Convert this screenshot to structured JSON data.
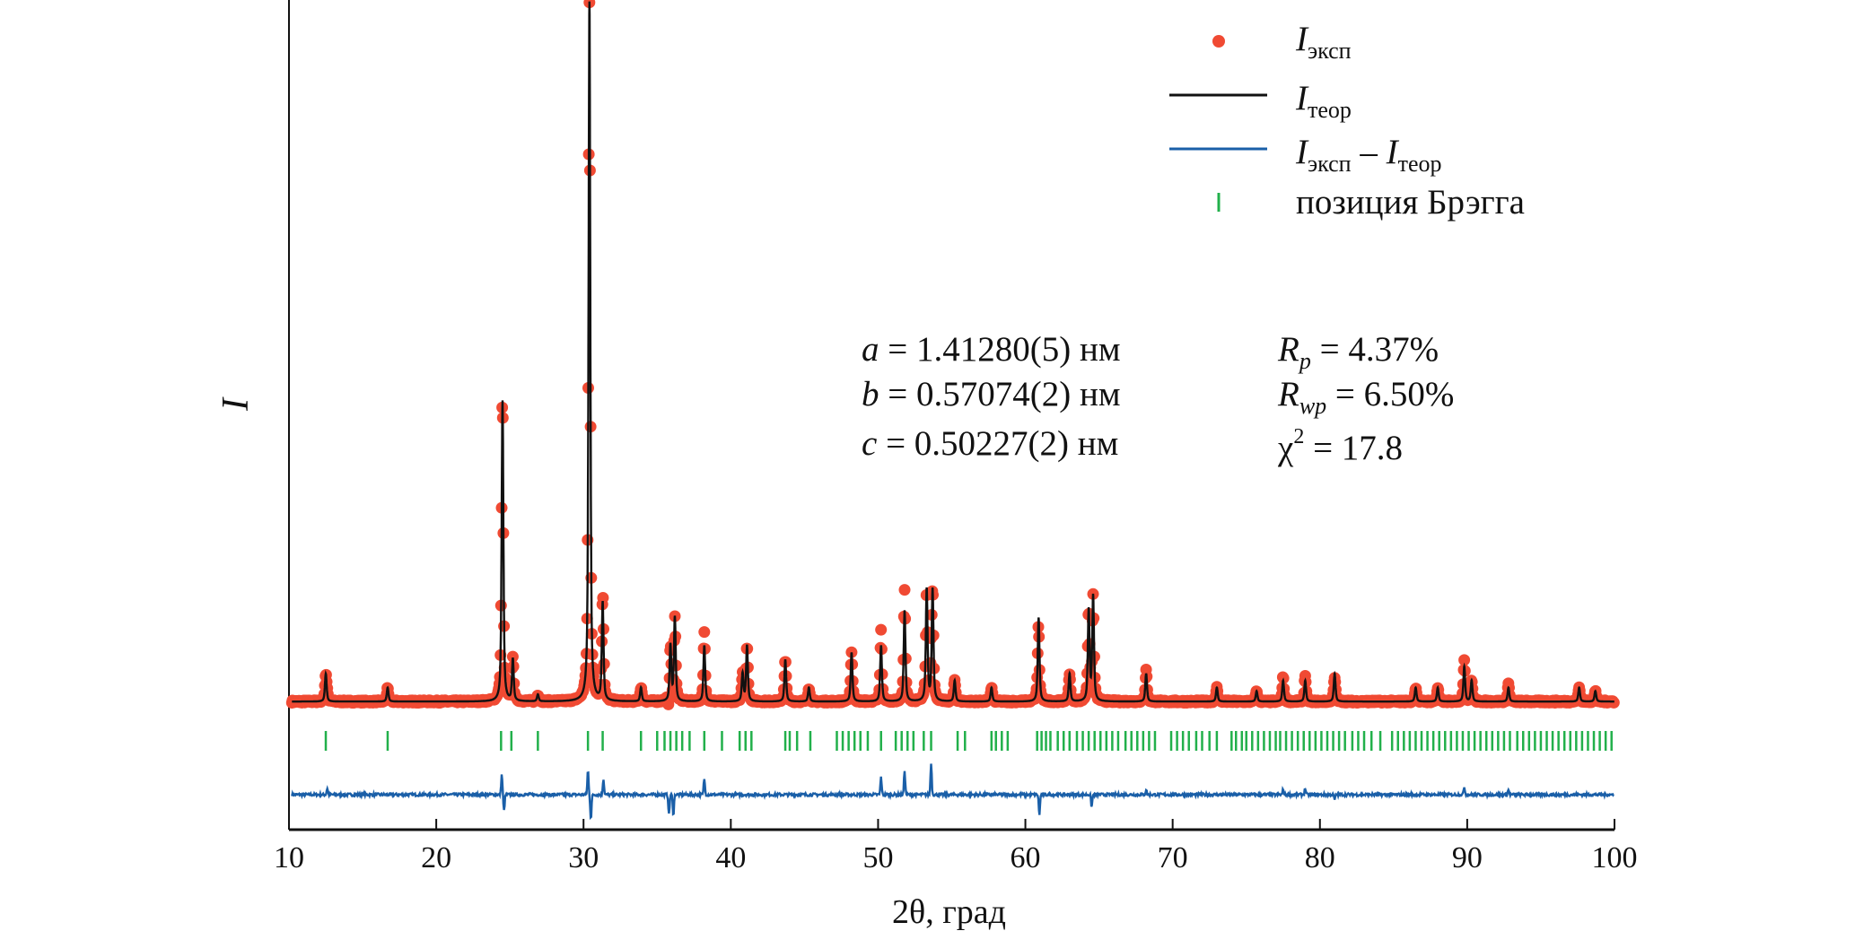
{
  "chart_data": {
    "type": "line",
    "xlabel": "2θ, град",
    "ylabel": "I",
    "xlim": [
      10,
      100
    ],
    "xticks": [
      "10",
      "20",
      "30",
      "40",
      "50",
      "60",
      "70",
      "80",
      "90",
      "100"
    ],
    "yticks": [],
    "grid": false,
    "legend_placement": "top-right",
    "legend": [
      {
        "marker": "dot",
        "symbol": "I",
        "sub": "эксп",
        "color": "#f04a33"
      },
      {
        "marker": "line",
        "symbol": "I",
        "sub": "теор",
        "color": "#111111"
      },
      {
        "marker": "line",
        "symbol": "I",
        "sub": "эксп",
        "minus": " – ",
        "symbol2": "I",
        "sub2": "теор",
        "color": "#1a5fa8"
      },
      {
        "marker": "tick",
        "text": "позиция Брэгга",
        "color": "#22b04b"
      }
    ],
    "annotations": {
      "cell": [
        {
          "var": "a",
          "text": " = 1.41280(5) нм"
        },
        {
          "var": "b",
          "text": " = 0.57074(2) нм"
        },
        {
          "var": "c",
          "text": " = 0.50227(2) нм"
        }
      ],
      "fit": [
        {
          "var": "R",
          "sub": "p",
          "text": " = 4.37%"
        },
        {
          "var": "R",
          "sub": "wp",
          "text": " = 6.50%"
        },
        {
          "var": "χ",
          "sup": "2",
          "text": " = 17.8"
        }
      ]
    },
    "background": 1,
    "calc_peaks": [
      [
        12.5,
        4
      ],
      [
        16.7,
        2
      ],
      [
        24.5,
        43
      ],
      [
        25.2,
        6
      ],
      [
        26.9,
        1
      ],
      [
        30.4,
        100
      ],
      [
        31.3,
        14
      ],
      [
        33.9,
        2
      ],
      [
        35.9,
        8
      ],
      [
        36.2,
        12
      ],
      [
        38.2,
        8
      ],
      [
        40.8,
        4
      ],
      [
        41.1,
        8
      ],
      [
        43.7,
        6
      ],
      [
        45.3,
        2
      ],
      [
        48.2,
        7
      ],
      [
        50.2,
        8
      ],
      [
        51.8,
        13
      ],
      [
        53.3,
        16
      ],
      [
        53.7,
        16
      ],
      [
        55.2,
        3
      ],
      [
        57.7,
        2
      ],
      [
        60.9,
        12
      ],
      [
        63.0,
        4
      ],
      [
        64.3,
        13
      ],
      [
        64.6,
        15
      ],
      [
        68.2,
        4
      ],
      [
        73.0,
        2
      ],
      [
        75.7,
        1.5
      ],
      [
        77.5,
        3
      ],
      [
        79.0,
        3
      ],
      [
        81.0,
        4
      ],
      [
        86.5,
        2
      ],
      [
        88.0,
        2
      ],
      [
        89.8,
        5
      ],
      [
        90.3,
        3
      ],
      [
        92.8,
        2
      ],
      [
        97.6,
        2
      ],
      [
        98.7,
        1.5
      ]
    ],
    "difference_features": [
      [
        12.6,
        0.8
      ],
      [
        24.45,
        2.5
      ],
      [
        24.6,
        -2
      ],
      [
        30.3,
        3
      ],
      [
        30.5,
        -3
      ],
      [
        31.35,
        2
      ],
      [
        35.8,
        -2.5
      ],
      [
        36.1,
        -2.5
      ],
      [
        38.2,
        2
      ],
      [
        50.2,
        2.2
      ],
      [
        51.8,
        3
      ],
      [
        53.6,
        4
      ],
      [
        60.95,
        -2.5
      ],
      [
        64.5,
        -1.5
      ],
      [
        68.2,
        0.6
      ],
      [
        77.5,
        0.6
      ],
      [
        79.0,
        0.8
      ],
      [
        81.0,
        -0.6
      ],
      [
        89.8,
        1
      ],
      [
        92.8,
        0.6
      ]
    ],
    "bragg_positions": [
      12.5,
      16.7,
      24.4,
      25.1,
      26.9,
      30.3,
      31.3,
      33.9,
      35.0,
      35.5,
      35.9,
      36.3,
      36.7,
      37.2,
      38.2,
      39.4,
      40.6,
      41.0,
      41.4,
      43.7,
      44.0,
      44.5,
      45.4,
      47.2,
      47.6,
      48.0,
      48.4,
      48.8,
      49.3,
      50.2,
      51.2,
      51.6,
      52.0,
      52.4,
      53.1,
      53.6,
      55.4,
      55.9,
      57.7,
      58.0,
      58.4,
      58.8,
      60.8,
      61.1,
      61.4,
      61.7,
      62.2,
      62.6,
      63.0,
      63.5,
      63.9,
      64.3,
      64.7,
      65.1,
      65.5,
      65.9,
      66.3,
      66.8,
      67.2,
      67.6,
      68.0,
      68.4,
      68.8,
      69.9,
      70.3,
      70.7,
      71.1,
      71.6,
      72.0,
      72.5,
      73.0,
      74.0,
      74.3,
      74.7,
      75.0,
      75.4,
      75.8,
      76.2,
      76.6,
      77.0,
      77.3,
      77.7,
      78.1,
      78.5,
      78.9,
      79.3,
      79.7,
      80.1,
      80.5,
      80.9,
      81.3,
      81.7,
      82.2,
      82.6,
      83.0,
      83.5,
      84.1,
      84.9,
      85.3,
      85.7,
      86.1,
      86.5,
      86.9,
      87.3,
      87.7,
      88.1,
      88.5,
      88.9,
      89.3,
      89.7,
      90.1,
      90.5,
      90.9,
      91.3,
      91.7,
      92.1,
      92.5,
      92.9,
      93.4,
      93.8,
      94.2,
      94.6,
      95.0,
      95.4,
      95.8,
      96.2,
      96.6,
      97.0,
      97.4,
      97.8,
      98.2,
      98.6,
      99.0,
      99.4,
      99.8
    ],
    "colors": {
      "experimental": "#f04a33",
      "calculated": "#111111",
      "difference": "#1a5fa8",
      "bragg": "#22b04b"
    }
  }
}
